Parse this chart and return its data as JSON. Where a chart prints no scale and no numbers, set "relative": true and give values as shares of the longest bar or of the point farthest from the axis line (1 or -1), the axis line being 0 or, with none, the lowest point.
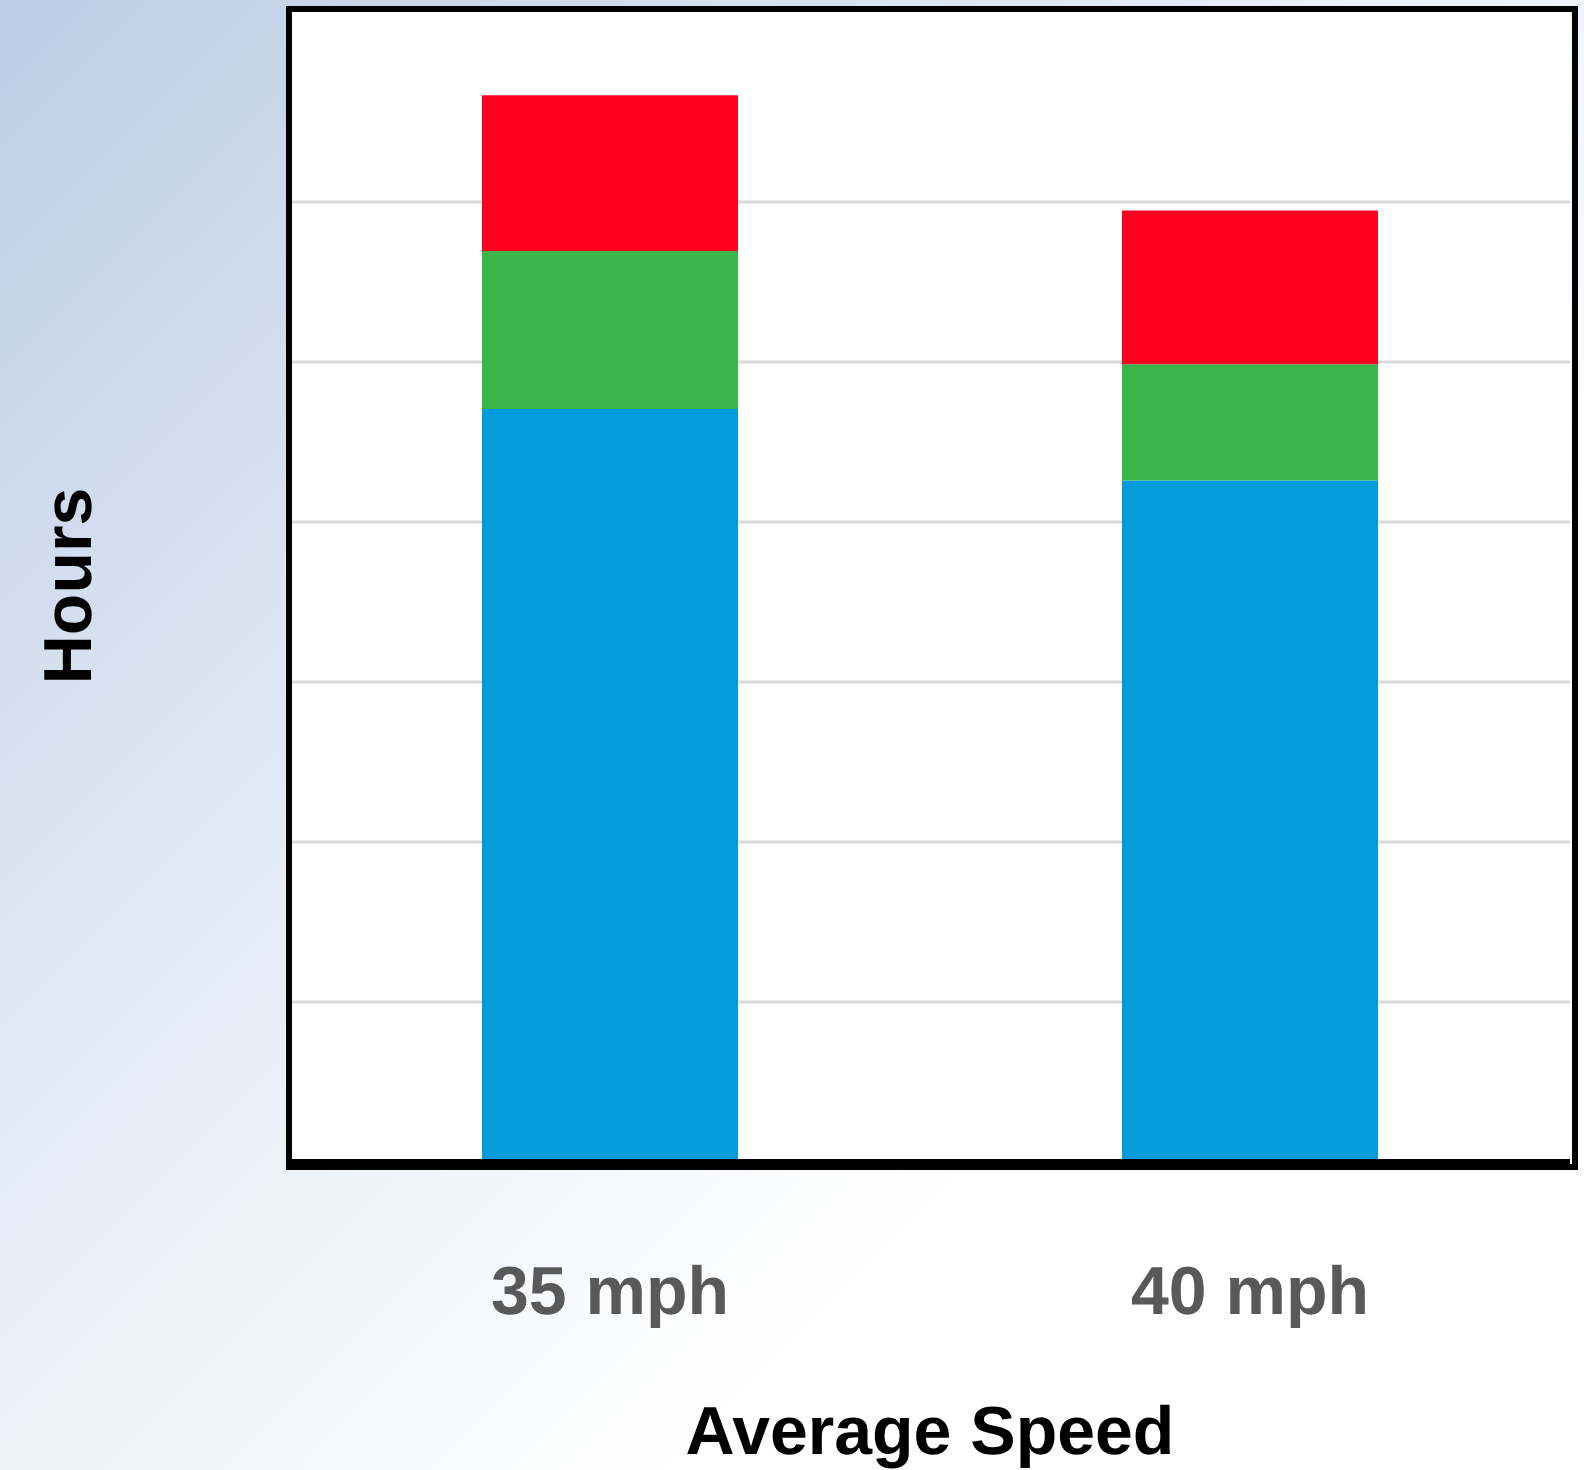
{
  "chart_data": {
    "type": "bar",
    "stacked": true,
    "relative": true,
    "xlabel": "Average Speed",
    "ylabel": "Hours",
    "categories": [
      "35 mph",
      "40 mph"
    ],
    "grid": "y",
    "series": [
      {
        "color": "#039bdc",
        "values": [
          0.706,
          0.639
        ]
      },
      {
        "color": "#3bb54a",
        "values": [
          0.148,
          0.109
        ]
      },
      {
        "color": "#ff0020",
        "values": [
          0.146,
          0.144
        ]
      }
    ]
  }
}
